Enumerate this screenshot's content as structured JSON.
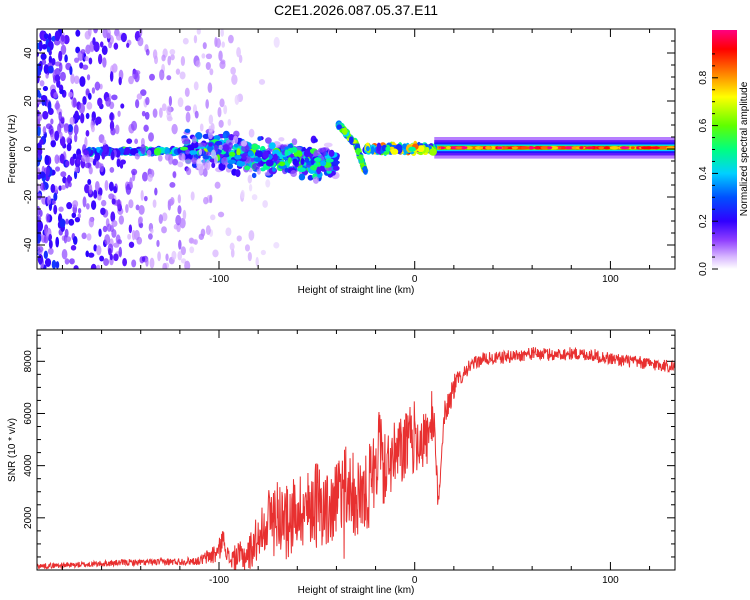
{
  "title": "C2E1.2026.087.05.37.E11",
  "chart_data": [
    {
      "type": "heatmap",
      "xlabel": "Height of straight line (km)",
      "ylabel": "Frequency (Hz)",
      "xlim": [
        -193,
        133
      ],
      "ylim": [
        -50,
        50
      ],
      "xticks": [
        -100,
        0,
        100
      ],
      "xtick_labels": [
        "-100",
        "0",
        "100"
      ],
      "yticks": [
        -40,
        -20,
        0,
        20,
        40
      ],
      "ytick_labels": [
        "-40",
        "-20",
        "0",
        "20",
        "40"
      ],
      "colorbar": {
        "label": "Normalized spectral amplitude",
        "range": [
          0,
          1
        ],
        "ticks": [
          0.0,
          0.2,
          0.4,
          0.6,
          0.8
        ],
        "tick_labels": [
          "0.0",
          "0.2",
          "0.4",
          "0.6",
          "0.8"
        ],
        "colors": [
          "#ffffff",
          "#c080ff",
          "#5000ff",
          "#0040ff",
          "#00c8ff",
          "#00ff80",
          "#60ff00",
          "#ffff00",
          "#ff8000",
          "#ff0000",
          "#ff0080"
        ]
      },
      "features": [
        {
          "name": "main-spectral-line",
          "x_range": [
            10,
            133
          ],
          "freq": 0.5,
          "amplitude": 0.92
        },
        {
          "name": "left-spectral-line",
          "x_range": [
            -168,
            -118
          ],
          "freq": -1,
          "amplitude": 0.5
        },
        {
          "name": "mid-spectral-cluster",
          "x_range": [
            -118,
            -40
          ],
          "freq_range": [
            -12,
            12
          ],
          "amplitude": 0.55
        },
        {
          "name": "diagonal-streak",
          "points": [
            [
              -39,
              10
            ],
            [
              -30,
              2
            ],
            [
              -25,
              -10
            ]
          ],
          "amplitude": 0.6
        },
        {
          "name": "recovery-segment",
          "x_range": [
            -25,
            10
          ],
          "freq": 0,
          "amplitude": 0.7
        },
        {
          "name": "low-altitude-noise",
          "x_range": [
            -193,
            -100
          ],
          "freq_range": [
            -50,
            50
          ],
          "amplitude": 0.3
        }
      ]
    },
    {
      "type": "line",
      "xlabel": "Height of straight line (km)",
      "ylabel": "SNR (10 * v/v)",
      "xlim": [
        -193,
        133
      ],
      "ylim": [
        0,
        9200
      ],
      "xticks": [
        -100,
        0,
        100
      ],
      "xtick_labels": [
        "-100",
        "0",
        "100"
      ],
      "yticks": [
        2000,
        4000,
        6000,
        8000
      ],
      "ytick_labels": [
        "2000",
        "4000",
        "6000",
        "8000"
      ],
      "color": "#e83030",
      "series": [
        {
          "name": "SNR",
          "x": [
            -193,
            -170,
            -150,
            -130,
            -110,
            -100,
            -98,
            -95,
            -85,
            -80,
            -75,
            -70,
            -65,
            -60,
            -55,
            -50,
            -45,
            -40,
            -35,
            -30,
            -25,
            -20,
            -18,
            -16,
            -15,
            -10,
            -5,
            0,
            5,
            10,
            12,
            15,
            20,
            25,
            30,
            35,
            40,
            50,
            60,
            70,
            80,
            90,
            100,
            110,
            120,
            133
          ],
          "y": [
            150,
            200,
            280,
            300,
            350,
            700,
            1300,
            400,
            600,
            1300,
            2000,
            2200,
            1800,
            2400,
            2300,
            2800,
            2200,
            2500,
            3000,
            2800,
            3200,
            3500,
            5500,
            3600,
            4000,
            4300,
            4700,
            5100,
            5000,
            5300,
            2500,
            6000,
            7000,
            7600,
            7900,
            8100,
            8100,
            8200,
            8300,
            8250,
            8300,
            8250,
            8100,
            8000,
            7900,
            7800
          ],
          "noise": [
            100,
            110,
            120,
            130,
            160,
            500,
            300,
            400,
            700,
            900,
            1200,
            1400,
            1400,
            1500,
            1500,
            1600,
            1500,
            1600,
            1800,
            1700,
            1700,
            1700,
            1300,
            1300,
            1300,
            1400,
            1400,
            1400,
            1200,
            1000,
            400,
            600,
            500,
            300,
            250,
            250,
            250,
            250,
            250,
            250,
            250,
            250,
            250,
            250,
            250,
            250
          ]
        }
      ]
    }
  ]
}
